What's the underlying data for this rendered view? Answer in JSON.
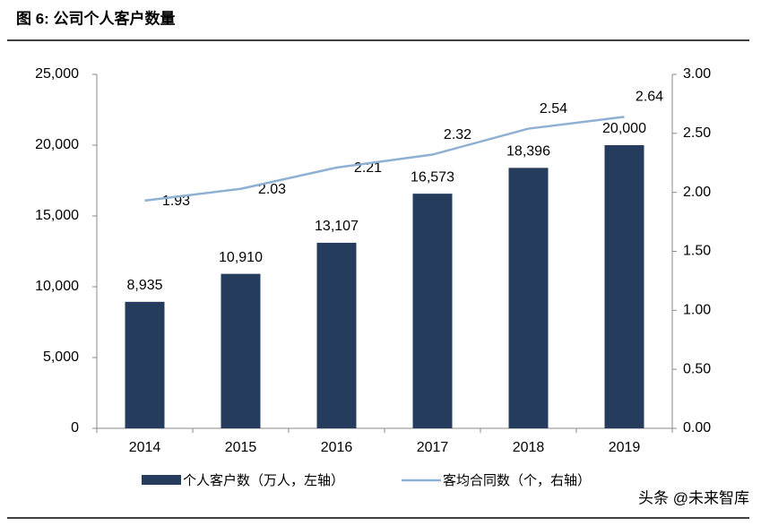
{
  "title": "图 6: 公司个人客户数量",
  "watermark": "头条 @未来智库",
  "chart_data": {
    "type": "bar-line",
    "categories": [
      "2014",
      "2015",
      "2016",
      "2017",
      "2018",
      "2019"
    ],
    "series": [
      {
        "name": "个人客户数（万人，左轴）",
        "type": "bar",
        "color": "#253c5c",
        "values": [
          8935,
          10910,
          13107,
          16573,
          18396,
          20000
        ],
        "value_labels": [
          "8,935",
          "10,910",
          "13,107",
          "16,573",
          "18,396",
          "20,000"
        ]
      },
      {
        "name": "客均合同数（个，右轴）",
        "type": "line",
        "axis": "y2",
        "color": "#8eb0d2",
        "values": [
          1.93,
          2.03,
          2.21,
          2.32,
          2.54,
          2.64
        ]
      }
    ],
    "ylim": [
      0,
      25000
    ],
    "yticks": [
      0,
      {
        "value": 5000,
        "label": "5,000"
      },
      {
        "value": 10000,
        "label": "10,000"
      },
      {
        "value": 15000,
        "label": "15,000"
      },
      {
        "value": 20000,
        "label": "20,000"
      },
      {
        "value": 25000,
        "label": "25,000"
      }
    ],
    "y2lim": [
      0,
      3
    ],
    "y2ticks": [
      {
        "value": 0,
        "label": "0.00"
      },
      {
        "value": 0.5,
        "label": "0.50"
      },
      {
        "value": 1,
        "label": "1.00"
      },
      {
        "value": 1.5,
        "label": "1.50"
      },
      {
        "value": 2,
        "label": "2.00"
      },
      {
        "value": 2.5,
        "label": "2.50"
      },
      {
        "value": 3,
        "label": "3.00"
      }
    ]
  }
}
